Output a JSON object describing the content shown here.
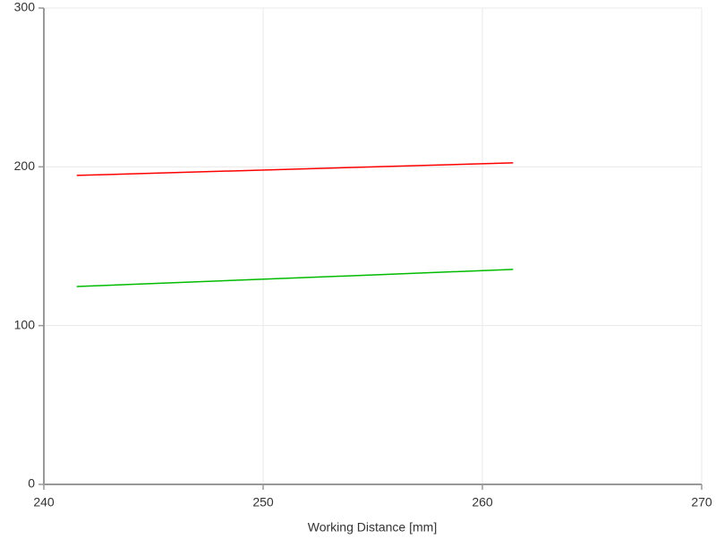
{
  "chart_data": {
    "type": "line",
    "x_label": "Working Distance [mm]",
    "series": [
      {
        "color": "#ff0000",
        "x": [
          241.5,
          261.4
        ],
        "values": [
          194.6,
          202.5
        ]
      },
      {
        "color": "#00bb00",
        "x": [
          241.5,
          261.4
        ],
        "values": [
          124.6,
          135.4
        ]
      }
    ],
    "xlim": [
      240,
      270
    ],
    "xticks": [
      240,
      250,
      260,
      270
    ],
    "ylim": [
      0,
      300
    ],
    "yticks": [
      0,
      100,
      200,
      300
    ],
    "grid": true
  }
}
